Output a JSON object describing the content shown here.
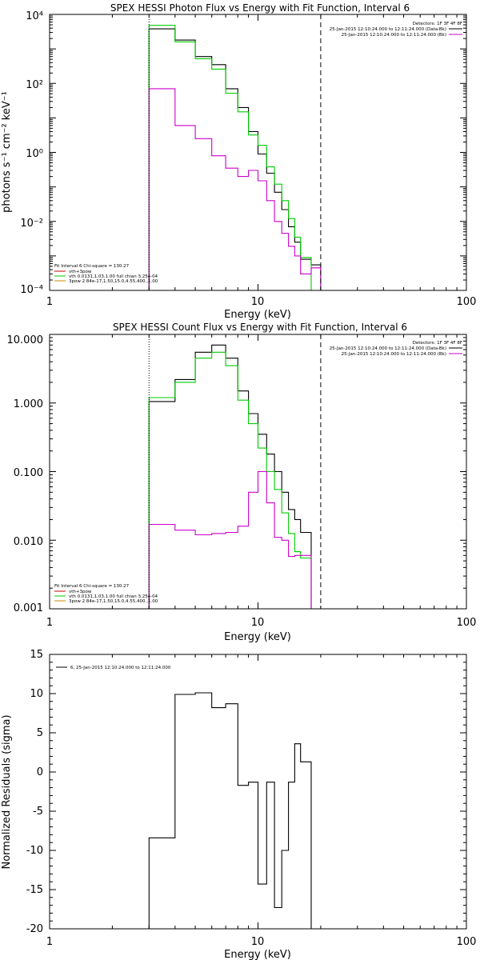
{
  "chart_data": [
    {
      "type": "line",
      "title": "SPEX HESSI Photon Flux vs Energy with Fit Function, Interval 6",
      "xlabel": "Energy (keV)",
      "ylabel": "photons s⁻¹ cm⁻² keV⁻¹",
      "xscale": "log",
      "yscale": "log",
      "xlim": [
        1,
        100
      ],
      "ylim": [
        0.0001,
        10000
      ],
      "x_ticks": [
        "1",
        "10",
        "100"
      ],
      "y_ticks": [
        "10⁴",
        "10²",
        "10⁰",
        "10⁻²",
        "10⁻⁴"
      ],
      "legend_top": {
        "header": "Detectors: 1F 3F 4F 8F",
        "entries": [
          {
            "label": "25-Jan-2015 12:10:24.000 to 12:11:24.000 (Data-Bk)",
            "color": "#000000"
          },
          {
            "label": "25-Jan-2015 12:10:24.000 to 12:11:24.000 (Bk)",
            "color": "#cc00cc"
          }
        ]
      },
      "legend_bottom": {
        "header": "Fit Interval 6   Chi-square = 130.27",
        "entries": [
          {
            "label": "vth+3pow",
            "color": "#cc0000"
          },
          {
            "label": "vth 0.0131,1.03,1.00  full chian 3.25e-04",
            "color": "#00cc00"
          },
          {
            "label": "3pow 2.84e-17,1.50,15.0,4.55,400.,1.00",
            "color": "#cc8800"
          }
        ]
      },
      "edges": [
        3,
        4,
        5,
        6,
        7,
        8,
        9,
        10,
        11,
        12,
        13,
        14,
        15,
        16,
        18,
        20
      ],
      "vlines": [
        {
          "x": 3,
          "style": "dotted"
        },
        {
          "x": 20,
          "style": "dashed"
        }
      ],
      "series": [
        {
          "color": "#000000",
          "values": [
            3800,
            1800,
            600,
            350,
            70,
            20,
            4,
            0.9,
            0.25,
            0.07,
            0.022,
            0.007,
            0.0025,
            0.0008,
            0.00055
          ]
        },
        {
          "color": "#00cc00",
          "values": [
            4800,
            1600,
            520,
            260,
            52,
            15,
            3.2,
            1.6,
            0.38,
            0.12,
            0.04,
            0.012,
            0.0035,
            0.0009,
            0.0001
          ]
        },
        {
          "color": "#cc00cc",
          "values": [
            70,
            6,
            2.5,
            0.8,
            0.35,
            0.2,
            0.3,
            0.15,
            0.04,
            0.01,
            0.0045,
            0.0019,
            0.001,
            0.0003,
            0.00045
          ]
        }
      ]
    },
    {
      "type": "line",
      "title": "SPEX HESSI Count Flux vs Energy with Fit Function, Interval 6",
      "xlabel": "Energy (keV)",
      "ylabel": "",
      "xscale": "log",
      "yscale": "log",
      "xlim": [
        1,
        100
      ],
      "ylim": [
        0.001,
        10
      ],
      "x_ticks": [
        "1",
        "10",
        "100"
      ],
      "y_ticks": [
        "10.000",
        "1.000",
        "0.100",
        "0.010",
        "0.001"
      ],
      "legend_top": {
        "header": "Detectors: 1F 3F 4F 8F",
        "entries": [
          {
            "label": "25-Jan-2015 12:10:24.000 to 12:11:24.000 (Data-Bk)",
            "color": "#000000"
          },
          {
            "label": "25-Jan-2015 12:10:24.000 to 12:11:24.000 (Bk)",
            "color": "#cc00cc"
          }
        ]
      },
      "legend_bottom": {
        "header": "Fit Interval 6   Chi-square = 130.27",
        "entries": [
          {
            "label": "vth+3pow",
            "color": "#cc0000"
          },
          {
            "label": "vth 0.0131,1.03,1.00  full chian 3.25e-04",
            "color": "#00cc00"
          },
          {
            "label": "3pow 2.84e-17,1.50,15.0,4.55,400.,1.00",
            "color": "#cc8800"
          }
        ]
      },
      "edges": [
        3,
        4,
        5,
        6,
        7,
        8,
        9,
        10,
        11,
        12,
        13,
        14,
        15,
        16,
        18,
        20
      ],
      "vlines": [
        {
          "x": 3,
          "style": "dotted"
        },
        {
          "x": 20,
          "style": "dashed"
        }
      ],
      "series": [
        {
          "color": "#000000",
          "values": [
            1.05,
            2.2,
            5.5,
            7.0,
            4.5,
            1.5,
            0.7,
            0.35,
            0.18,
            0.1,
            0.05,
            0.028,
            0.02,
            0.013
          ]
        },
        {
          "color": "#00cc00",
          "values": [
            1.2,
            2.0,
            4.5,
            5.5,
            3.5,
            1.1,
            0.5,
            0.22,
            0.1,
            0.055,
            0.025,
            0.0125,
            0.0068,
            0.0055,
            0.001
          ]
        },
        {
          "color": "#cc00cc",
          "values": [
            0.017,
            0.014,
            0.012,
            0.0125,
            0.013,
            0.016,
            0.05,
            0.1,
            0.035,
            0.011,
            0.01,
            0.0058,
            0.006,
            0.006
          ]
        }
      ]
    },
    {
      "type": "line",
      "title": "",
      "xlabel": "Energy (keV)",
      "ylabel": "Normalized Residuals (sigma)",
      "xscale": "log",
      "yscale": "linear",
      "xlim": [
        1,
        100
      ],
      "ylim": [
        -20,
        15
      ],
      "x_ticks": [
        "1",
        "10",
        "100"
      ],
      "y_ticks": [
        "15",
        "10",
        "5",
        "0",
        "-5",
        "-10",
        "-15",
        "-20"
      ],
      "legend": {
        "label": "6, 25-Jan-2015 12:10:24.000 to 12:11:24.000",
        "color": "#000000"
      },
      "edges": [
        3,
        4,
        5,
        6,
        7,
        8,
        9,
        10,
        11,
        12,
        13,
        14,
        15,
        16,
        18,
        20
      ],
      "series": [
        {
          "color": "#000000",
          "values": [
            -8.4,
            9.9,
            10.1,
            8.2,
            8.7,
            -1.7,
            -1.3,
            -14.3,
            -1.3,
            -17.3,
            -10.0,
            -1.3,
            3.6,
            1.3
          ]
        }
      ]
    }
  ]
}
